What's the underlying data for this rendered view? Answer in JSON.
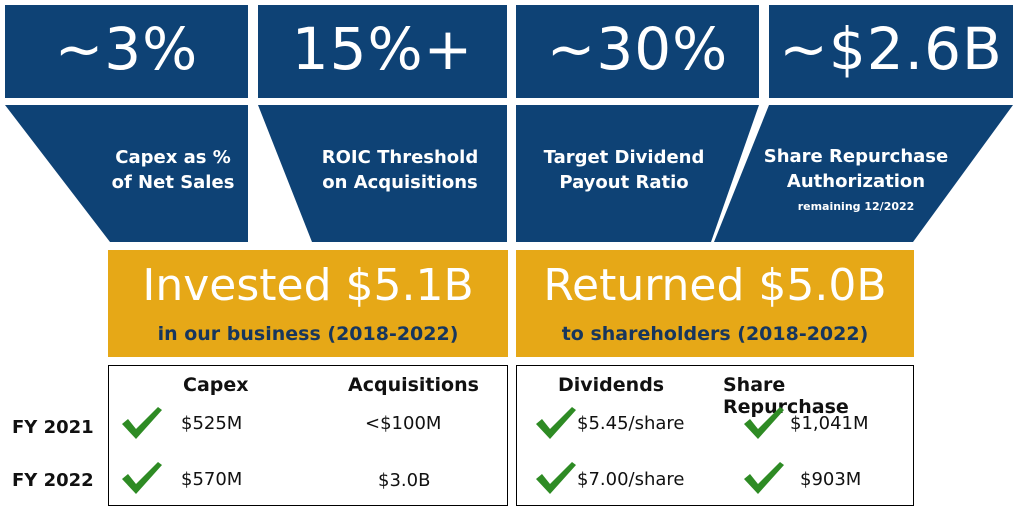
{
  "metrics": [
    {
      "value": "~3%",
      "label_line1": "Capex as %",
      "label_line2": "of Net Sales",
      "note": ""
    },
    {
      "value": "15%+",
      "label_line1": "ROIC Threshold",
      "label_line2": "on Acquisitions",
      "note": ""
    },
    {
      "value": "~30%",
      "label_line1": "Target Dividend",
      "label_line2": "Payout Ratio",
      "note": ""
    },
    {
      "value": "~$2.6B",
      "label_line1": "Share Repurchase",
      "label_line2": "Authorization",
      "note": "remaining 12/2022"
    }
  ],
  "invested": {
    "headline": "Invested $5.1B",
    "sub": "in our business (2018-2022)"
  },
  "returned": {
    "headline": "Returned $5.0B",
    "sub": "to shareholders (2018-2022)"
  },
  "table": {
    "years": [
      "FY 2021",
      "FY 2022"
    ],
    "left_headers": [
      "Capex",
      "Acquisitions"
    ],
    "left_rows": [
      [
        "$525M",
        "<$100M"
      ],
      [
        "$570M",
        "$3.0B"
      ]
    ],
    "right_headers": [
      "Dividends",
      "Share Repurchase"
    ],
    "right_rows": [
      [
        "$5.45/share",
        "$1,041M"
      ],
      [
        "$7.00/share",
        "$903M"
      ]
    ]
  },
  "colors": {
    "navy": "#0e4275",
    "gold": "#e6a817",
    "check_green": "#2e8b24",
    "sub_text": "#17365d"
  },
  "icons": {
    "check": "check-icon"
  }
}
